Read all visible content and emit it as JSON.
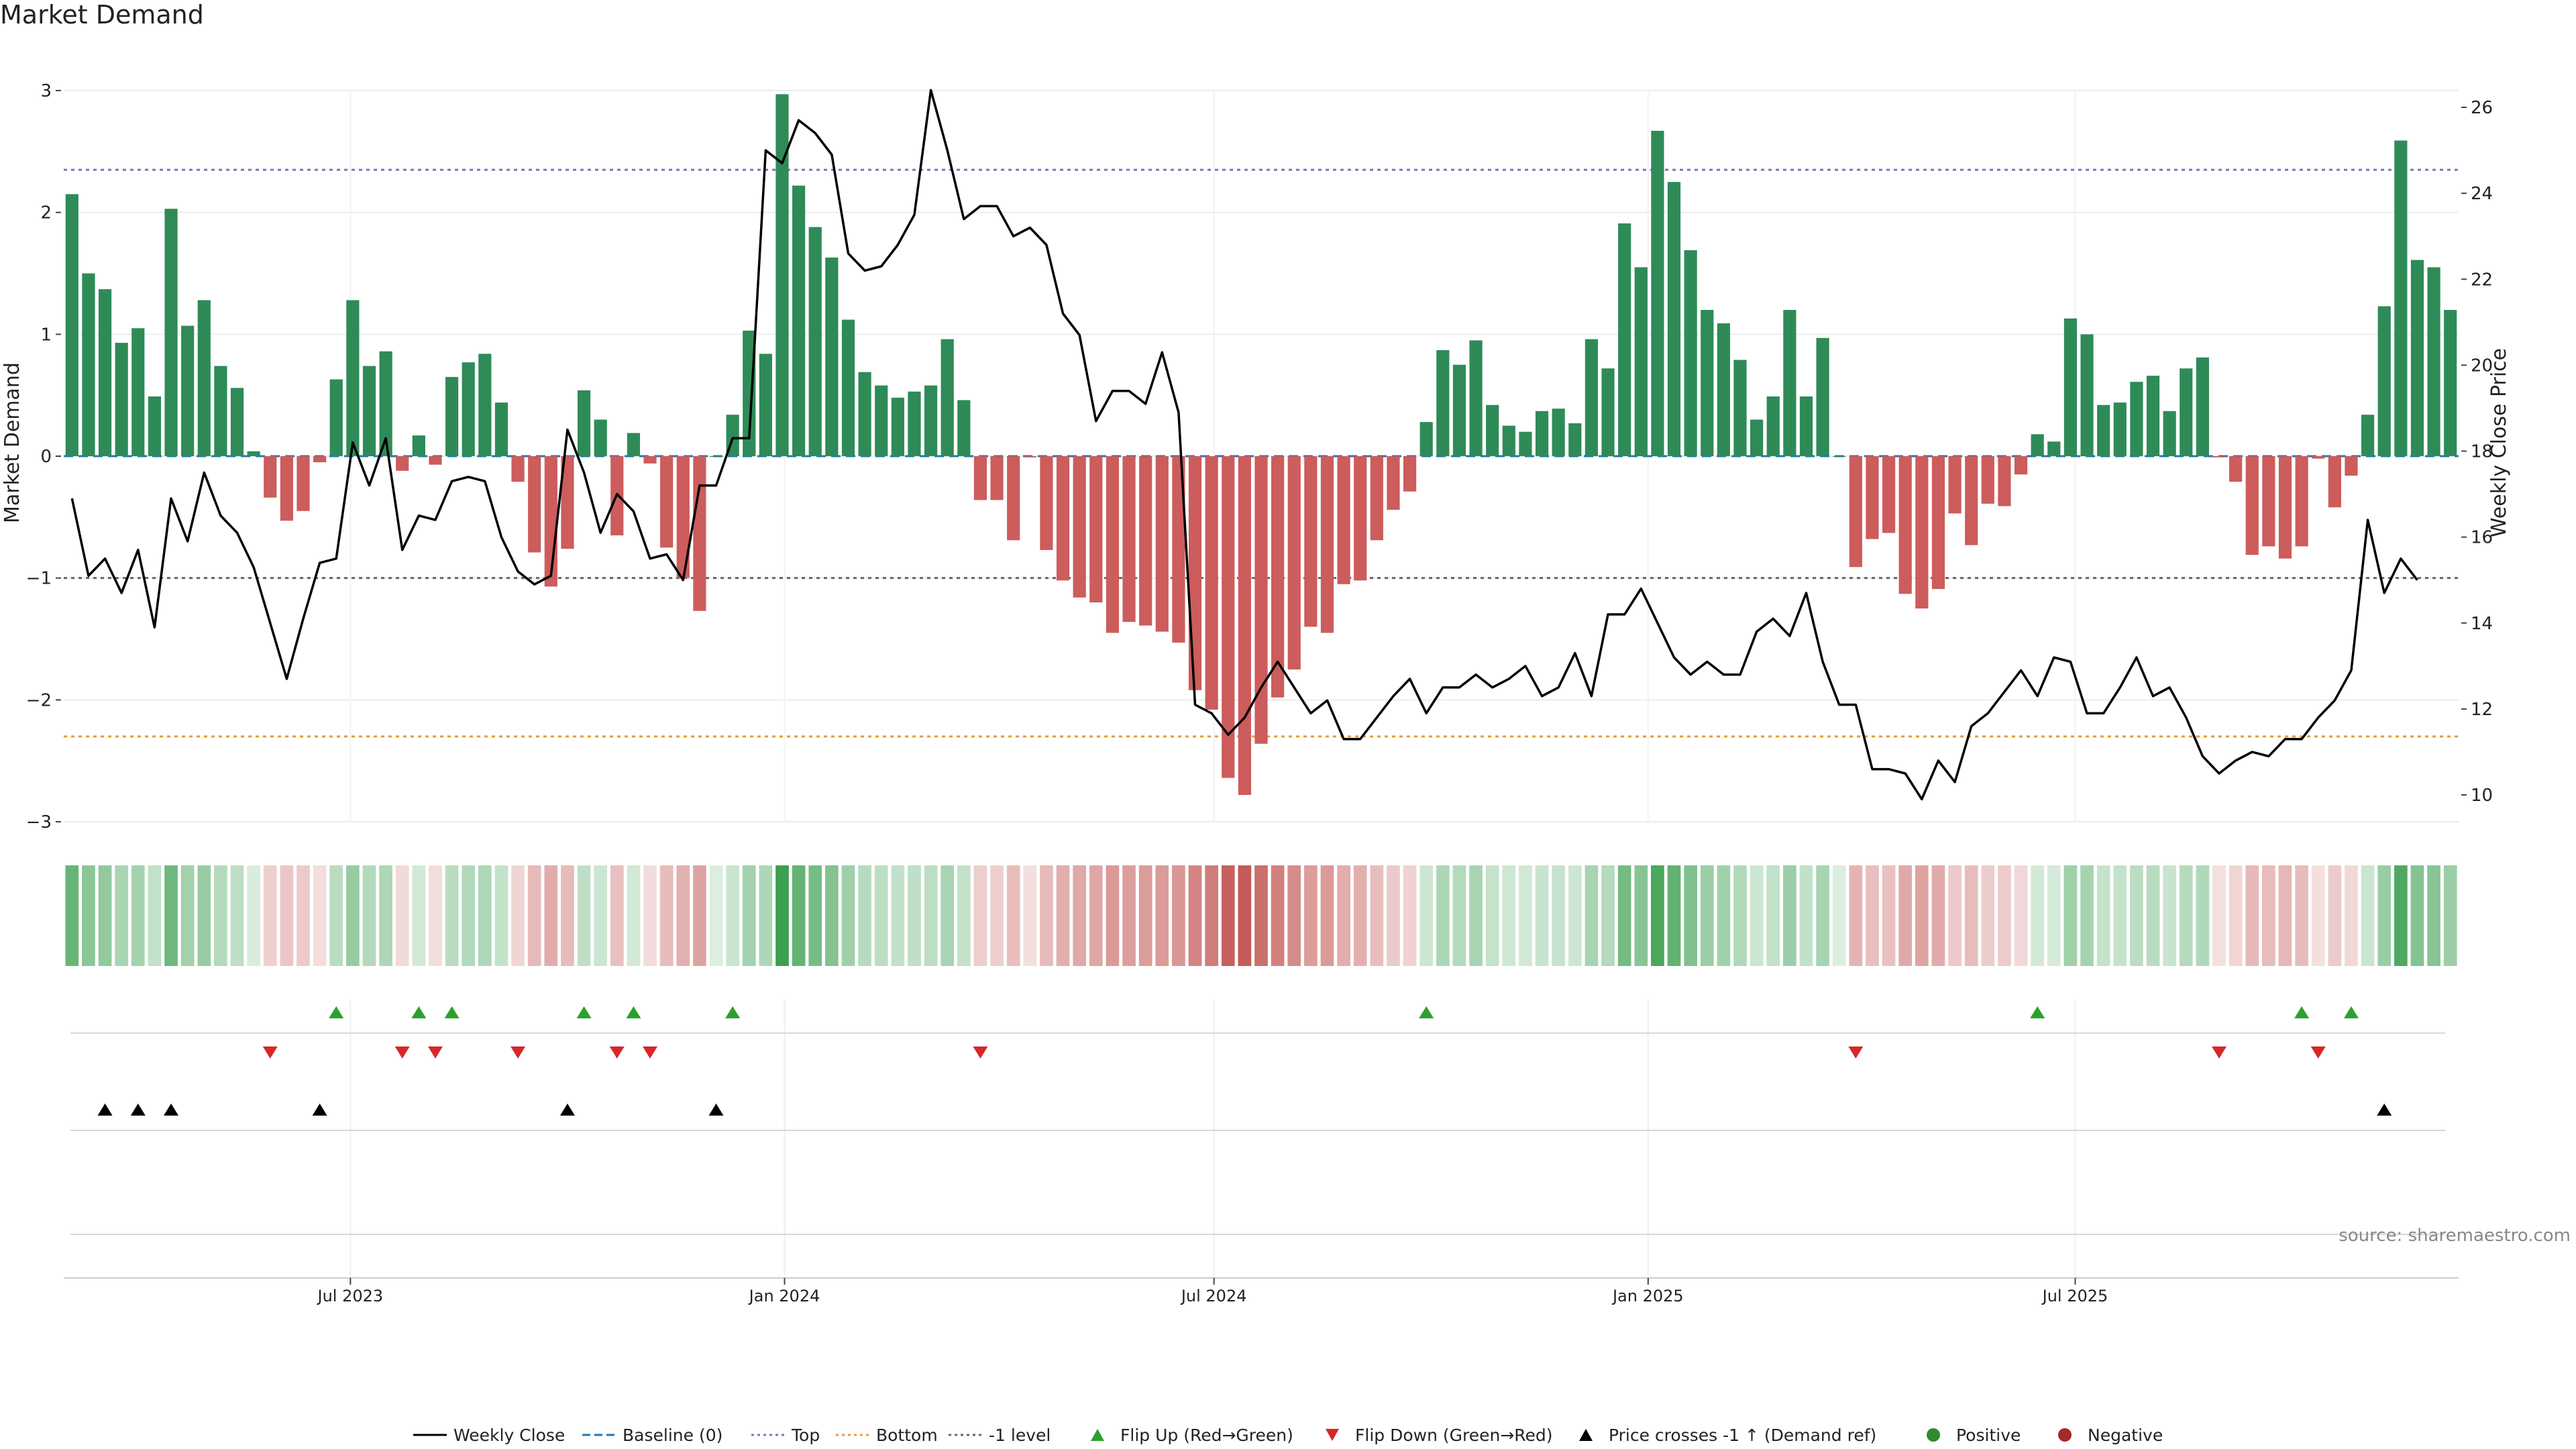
{
  "chart_data": {
    "type": "bar",
    "title": "Market Demand",
    "ylabel": "Market Demand",
    "y2label": "Weekly Close Price",
    "ylim": [
      -3,
      3
    ],
    "y_ticks": [
      3,
      2,
      1,
      0,
      -1,
      -2,
      -3
    ],
    "y_tick_labels": [
      "3",
      "2",
      "1",
      "0",
      "−1",
      "−2",
      "−3"
    ],
    "y2lim": [
      10,
      26
    ],
    "y2_ticks": [
      26,
      24,
      22,
      20,
      18,
      16,
      14,
      12,
      10
    ],
    "y2_tick_labels": [
      "26",
      "24",
      "22",
      "20",
      "18",
      "16",
      "14",
      "12",
      "10"
    ],
    "x_start": "2023-03-05",
    "x_step_days": 7,
    "x_tick_labels": [
      {
        "date": "2023-07-01",
        "label": "Jul 2023"
      },
      {
        "date": "2024-01-01",
        "label": "Jan 2024"
      },
      {
        "date": "2024-07-01",
        "label": "Jul 2024"
      },
      {
        "date": "2025-01-01",
        "label": "Jan 2025"
      },
      {
        "date": "2025-07-01",
        "label": "Jul 2025"
      }
    ],
    "reference_lines": [
      {
        "name": "Baseline (0)",
        "value": 0,
        "color": "#1f77b4",
        "style": "dashed"
      },
      {
        "name": "Top",
        "value": 2.35,
        "color": "#7777bb",
        "style": "dotted"
      },
      {
        "name": "Bottom",
        "value": -2.3,
        "color": "#e69a3a",
        "style": "dotted"
      },
      {
        "name": "-1 level",
        "value": -1,
        "color": "#666666",
        "style": "dotted"
      }
    ],
    "demand": [
      2.15,
      1.5,
      1.37,
      0.93,
      1.05,
      0.49,
      2.03,
      1.07,
      1.28,
      0.74,
      0.56,
      0.04,
      -0.34,
      -0.53,
      -0.45,
      -0.05,
      0.63,
      1.28,
      0.74,
      0.86,
      -0.12,
      0.17,
      -0.07,
      0.65,
      0.77,
      0.84,
      0.44,
      -0.21,
      -0.79,
      -1.07,
      -0.76,
      0.54,
      0.3,
      -0.65,
      0.19,
      -0.06,
      -0.75,
      -1.0,
      -1.27,
      0.0,
      0.34,
      1.03,
      0.84,
      2.97,
      2.22,
      1.88,
      1.63,
      1.12,
      0.69,
      0.58,
      0.48,
      0.53,
      0.58,
      0.96,
      0.46,
      -0.36,
      -0.36,
      -0.69,
      -0.01,
      -0.77,
      -1.02,
      -1.16,
      -1.2,
      -1.45,
      -1.36,
      -1.39,
      -1.44,
      -1.53,
      -1.92,
      -2.08,
      -2.64,
      -2.78,
      -2.36,
      -1.98,
      -1.75,
      -1.4,
      -1.45,
      -1.05,
      -1.02,
      -0.69,
      -0.44,
      -0.29,
      0.28,
      0.87,
      0.75,
      0.95,
      0.42,
      0.25,
      0.2,
      0.37,
      0.39,
      0.27,
      0.96,
      0.72,
      1.91,
      1.55,
      2.67,
      2.25,
      1.69,
      1.2,
      1.09,
      0.79,
      0.3,
      0.49,
      1.2,
      0.49,
      0.97,
      0.0,
      -0.91,
      -0.68,
      -0.63,
      -1.13,
      -1.25,
      -1.09,
      -0.47,
      -0.73,
      -0.39,
      -0.41,
      -0.15,
      0.18,
      0.12,
      1.13,
      1.0,
      0.42,
      0.44,
      0.61,
      0.66,
      0.37,
      0.72,
      0.81,
      -0.01,
      -0.21,
      -0.81,
      -0.74,
      -0.84,
      -0.74,
      -0.02,
      -0.42,
      -0.16,
      0.34,
      1.23,
      2.59,
      1.61,
      1.55,
      1.2
    ],
    "close": [
      16.9,
      15.1,
      15.5,
      14.7,
      15.7,
      13.9,
      16.9,
      15.9,
      17.5,
      16.5,
      16.1,
      15.3,
      14.0,
      12.7,
      14.1,
      15.4,
      15.5,
      18.2,
      17.2,
      18.3,
      15.7,
      16.5,
      16.4,
      17.3,
      17.4,
      17.3,
      16.0,
      15.2,
      14.9,
      15.1,
      18.5,
      17.5,
      16.1,
      17.0,
      16.6,
      15.5,
      15.6,
      15.0,
      17.2,
      17.2,
      18.3,
      18.3,
      25.0,
      24.7,
      25.7,
      25.4,
      24.9,
      22.6,
      22.2,
      22.3,
      22.8,
      23.5,
      26.4,
      25.0,
      23.4,
      23.7,
      23.7,
      23.0,
      23.2,
      22.8,
      21.2,
      20.7,
      18.7,
      19.4,
      19.4,
      19.1,
      20.3,
      18.9,
      12.1,
      11.9,
      11.4,
      11.8,
      12.5,
      13.1,
      12.5,
      11.9,
      12.2,
      11.3,
      11.3,
      11.8,
      12.3,
      12.7,
      11.9,
      12.5,
      12.5,
      12.8,
      12.5,
      12.7,
      13.0,
      12.3,
      12.5,
      13.3,
      12.3,
      14.2,
      14.2,
      14.8,
      14.0,
      13.2,
      12.8,
      13.1,
      12.8,
      12.8,
      13.8,
      14.1,
      13.7,
      14.7,
      13.1,
      12.1,
      12.1,
      10.6,
      10.6,
      10.5,
      9.9,
      10.8,
      10.3,
      11.6,
      11.9,
      12.4,
      12.9,
      12.3,
      13.2,
      13.1,
      11.9,
      11.9,
      12.5,
      13.2,
      12.3,
      12.5,
      11.8,
      10.9,
      10.5,
      10.8,
      11.0,
      10.9,
      11.3,
      11.3,
      11.8,
      12.2,
      12.9,
      16.4,
      14.7,
      15.5,
      15.0
    ],
    "flip_up": [
      16,
      21,
      23,
      31,
      34,
      40,
      82,
      119,
      135,
      138
    ],
    "flip_down": [
      12,
      20,
      22,
      27,
      33,
      35,
      55,
      108,
      130,
      136
    ],
    "price_cross_up": [
      2,
      4,
      6,
      15,
      30,
      39,
      140
    ],
    "series_styles": {
      "positive_color": "#2e8b57",
      "negative_color": "#cd5c5c",
      "close_color": "#000000",
      "flip_up_color": "#2ca02c",
      "flip_down_color": "#d62728",
      "cross_color": "#000000"
    },
    "source": "source: sharemaestro.com",
    "legend_position": "bottom-center",
    "legend": [
      {
        "label": "Weekly Close",
        "kind": "line",
        "color": "#000000"
      },
      {
        "label": "Baseline (0)",
        "kind": "dash",
        "color": "#1f77b4"
      },
      {
        "label": "Top",
        "kind": "dot",
        "color": "#7777bb"
      },
      {
        "label": "Bottom",
        "kind": "dot",
        "color": "#e69a3a"
      },
      {
        "label": "-1 level",
        "kind": "dot",
        "color": "#666666"
      },
      {
        "label": "Flip Up (Red→Green)",
        "kind": "tri-up",
        "color": "#2ca02c"
      },
      {
        "label": "Flip Down (Green→Red)",
        "kind": "tri-down",
        "color": "#d62728"
      },
      {
        "label": "Price crosses -1 ↑ (Demand ref)",
        "kind": "tri-up",
        "color": "#000000"
      },
      {
        "label": "Positive",
        "kind": "circle",
        "color": "#2e8b2e"
      },
      {
        "label": "Negative",
        "kind": "circle",
        "color": "#a52a2a"
      }
    ]
  }
}
